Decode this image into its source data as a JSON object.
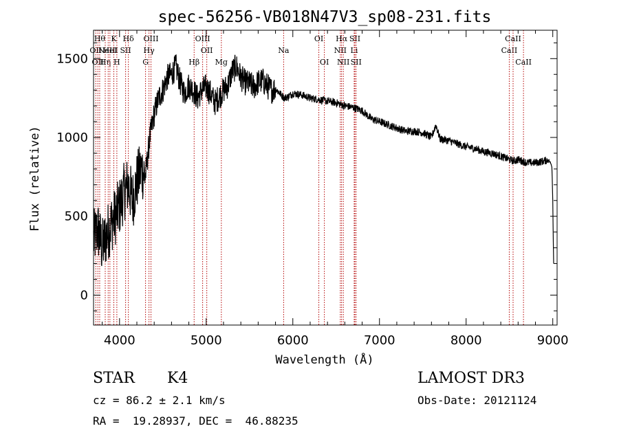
{
  "chart_data": {
    "type": "line",
    "title": "spec-56256-VB018N47V3_sp08-231.fits",
    "xlabel": "Wavelength (Å)",
    "ylabel": "Flux (relative)",
    "xlim": [
      3700,
      9050
    ],
    "ylim": [
      -190,
      1680
    ],
    "xticks": [
      4000,
      5000,
      6000,
      7000,
      8000,
      9000
    ],
    "yticks": [
      0,
      500,
      1000,
      1500
    ],
    "grid": false,
    "series": [
      {
        "name": "flux",
        "x": [
          3700,
          3750,
          3800,
          3850,
          3900,
          3950,
          4000,
          4050,
          4100,
          4150,
          4200,
          4250,
          4300,
          4350,
          4400,
          4450,
          4500,
          4550,
          4600,
          4650,
          4700,
          4750,
          4800,
          4850,
          4900,
          4950,
          5000,
          5050,
          5100,
          5150,
          5200,
          5250,
          5300,
          5350,
          5400,
          5450,
          5500,
          5550,
          5600,
          5650,
          5700,
          5750,
          5800,
          5850,
          5900,
          5950,
          6000,
          6100,
          6200,
          6300,
          6400,
          6500,
          6600,
          6700,
          6800,
          6900,
          7000,
          7100,
          7200,
          7300,
          7400,
          7500,
          7600,
          7650,
          7700,
          7800,
          7900,
          8000,
          8100,
          8200,
          8300,
          8400,
          8500,
          8550,
          8600,
          8650,
          8700,
          8800,
          8900,
          8950,
          8990,
          9000,
          9010
        ],
        "y": [
          350,
          420,
          300,
          380,
          450,
          500,
          560,
          650,
          700,
          600,
          720,
          800,
          760,
          1000,
          1150,
          1250,
          1300,
          1380,
          1400,
          1450,
          1350,
          1280,
          1330,
          1300,
          1250,
          1300,
          1320,
          1280,
          1220,
          1260,
          1300,
          1330,
          1420,
          1450,
          1380,
          1350,
          1340,
          1320,
          1350,
          1360,
          1330,
          1300,
          1310,
          1280,
          1250,
          1260,
          1280,
          1270,
          1250,
          1240,
          1230,
          1220,
          1200,
          1190,
          1170,
          1120,
          1100,
          1080,
          1060,
          1040,
          1040,
          1030,
          1000,
          1080,
          990,
          980,
          960,
          940,
          930,
          910,
          900,
          880,
          860,
          850,
          860,
          850,
          840,
          840,
          850,
          860,
          820,
          600,
          200
        ]
      }
    ],
    "line_markers": [
      {
        "wl": 3726,
        "label": "OII",
        "row": 1
      },
      {
        "wl": 3750,
        "label": "OII",
        "row": 2
      },
      {
        "wl": 3771,
        "label": "Hθ",
        "row": 0
      },
      {
        "wl": 3835,
        "label": "Hη",
        "row": 2
      },
      {
        "wl": 3869,
        "label": "NeIII",
        "row": 1
      },
      {
        "wl": 3889,
        "label": "HeI",
        "row": 1
      },
      {
        "wl": 3934,
        "label": "K",
        "row": 0
      },
      {
        "wl": 3969,
        "label": "H",
        "row": 2
      },
      {
        "wl": 4070,
        "label": "SII",
        "row": 1
      },
      {
        "wl": 4102,
        "label": "Hδ",
        "row": 0
      },
      {
        "wl": 4300,
        "label": "G",
        "row": 2
      },
      {
        "wl": 4340,
        "label": "Hγ",
        "row": 1
      },
      {
        "wl": 4363,
        "label": "OIII",
        "row": 0
      },
      {
        "wl": 4861,
        "label": "Hβ",
        "row": 2
      },
      {
        "wl": 4959,
        "label": "OIII",
        "row": 0
      },
      {
        "wl": 5007,
        "label": "OII",
        "row": 1
      },
      {
        "wl": 5175,
        "label": "Mg",
        "row": 2
      },
      {
        "wl": 5894,
        "label": "Na",
        "row": 1
      },
      {
        "wl": 6300,
        "label": "OI",
        "row": 0
      },
      {
        "wl": 6364,
        "label": "OI",
        "row": 2
      },
      {
        "wl": 6548,
        "label": "NII",
        "row": 1
      },
      {
        "wl": 6563,
        "label": "Hα",
        "row": 0
      },
      {
        "wl": 6583,
        "label": "NII",
        "row": 2
      },
      {
        "wl": 6708,
        "label": "Li",
        "row": 1
      },
      {
        "wl": 6716,
        "label": "SII",
        "row": 0
      },
      {
        "wl": 6730,
        "label": "SII",
        "row": 2
      },
      {
        "wl": 8498,
        "label": "CaII",
        "row": 1
      },
      {
        "wl": 8542,
        "label": "CaII",
        "row": 0
      },
      {
        "wl": 8662,
        "label": "CaII",
        "row": 2
      }
    ]
  },
  "info": {
    "class_label": "STAR",
    "subclass": "K4",
    "survey": "LAMOST DR3",
    "redshift_text": "cz = 86.2 ± 2.1 km/s",
    "obs_date_text": "Obs-Date: 20121124",
    "coords_text": "RA =  19.28937, DEC =  46.88235"
  }
}
